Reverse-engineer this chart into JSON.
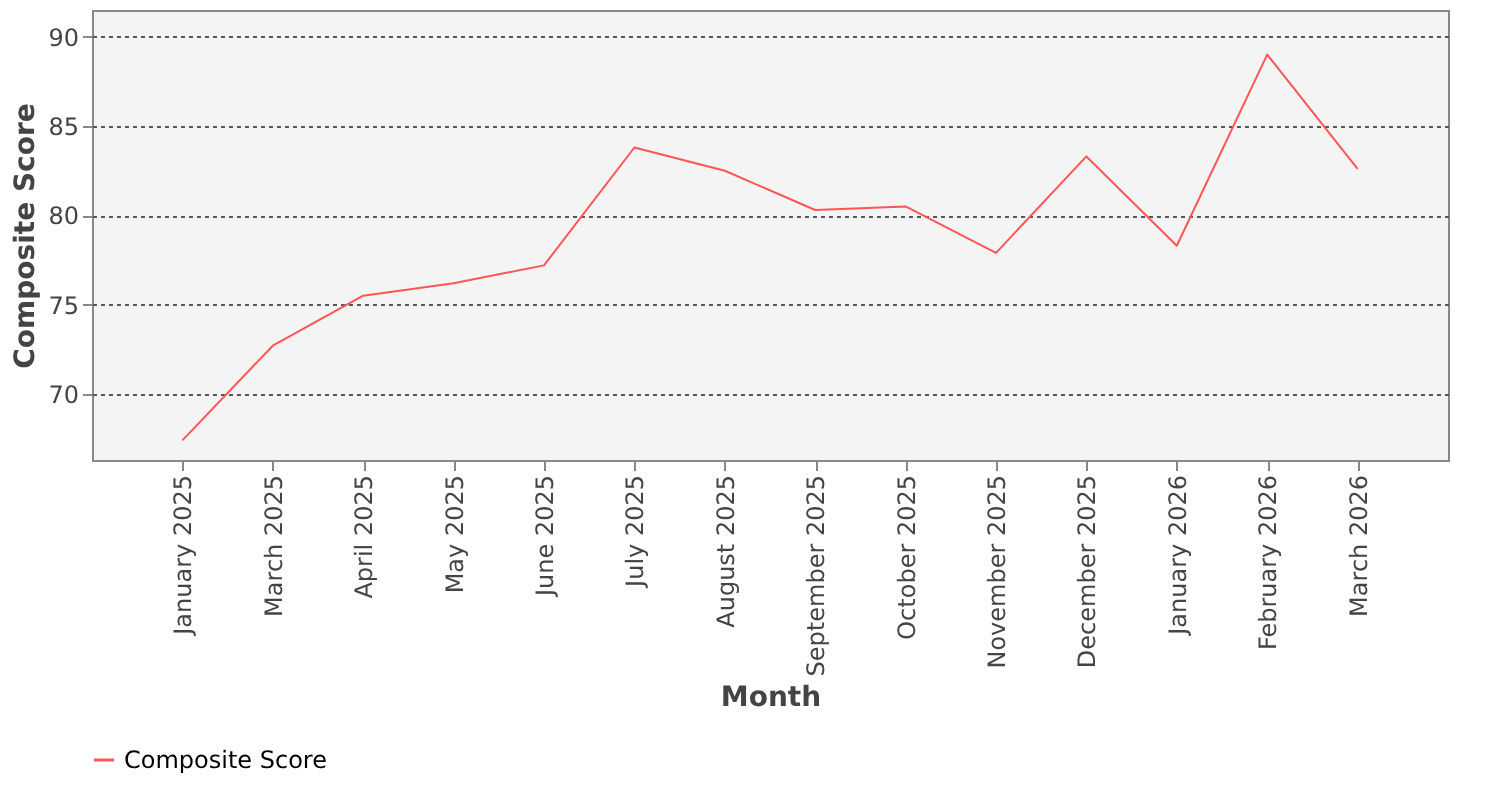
{
  "chart_data": {
    "type": "line",
    "xlabel": "Month",
    "ylabel": "Composite Score",
    "categories": [
      "January 2025",
      "March 2025",
      "April 2025",
      "May 2025",
      "June 2025",
      "July 2025",
      "August 2025",
      "September 2025",
      "October 2025",
      "November 2025",
      "December 2025",
      "January 2026",
      "February 2026",
      "March 2026"
    ],
    "series": [
      {
        "name": "Composite Score",
        "color": "#ff5555",
        "values": [
          67.4,
          72.7,
          75.5,
          76.2,
          77.2,
          83.8,
          82.5,
          80.3,
          80.5,
          77.9,
          83.3,
          78.3,
          89.0,
          82.6
        ]
      }
    ],
    "ylim": [
      66.3,
      91.5
    ],
    "yticks": [
      70,
      75,
      80,
      85,
      90
    ],
    "grid": "y",
    "legend": "bottom",
    "marker": "none",
    "line_style": "solid"
  }
}
